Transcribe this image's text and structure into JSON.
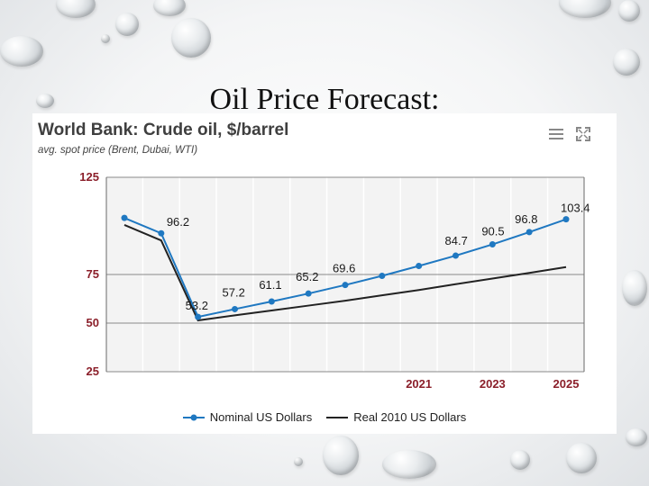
{
  "slide": {
    "title": "Oil Price Forecast:"
  },
  "chart_data": {
    "type": "line",
    "title": "World Bank: Crude oil, $/barrel",
    "subtitle": "avg. spot price (Brent, Dubai, WTI)",
    "x": [
      2013,
      2014,
      2015,
      2016,
      2017,
      2018,
      2019,
      2020,
      2021,
      2022,
      2023,
      2024,
      2025
    ],
    "x_tick_labels": [
      {
        "x": 2021,
        "label": "2021"
      },
      {
        "x": 2023,
        "label": "2023"
      },
      {
        "x": 2025,
        "label": "2025"
      }
    ],
    "y_ticks": [
      25,
      50,
      75,
      125
    ],
    "ylim": [
      25,
      125
    ],
    "grid": true,
    "series": [
      {
        "name": "Nominal US Dollars",
        "color": "#1f78c1",
        "marker": "circle",
        "values": [
          104.1,
          96.2,
          53.2,
          57.2,
          61.1,
          65.2,
          69.6,
          74.3,
          79.4,
          84.7,
          90.5,
          96.8,
          103.4
        ],
        "data_labels": [
          null,
          "96.2",
          "53.2",
          "57.2",
          "61.1",
          "65.2",
          "69.6",
          null,
          null,
          "84.7",
          "90.5",
          "96.8",
          "103.4"
        ]
      },
      {
        "name": "Real 2010 US Dollars",
        "color": "#222222",
        "marker": "none",
        "values": [
          100.5,
          92.5,
          51.4,
          54.0,
          56.5,
          59.0,
          61.5,
          64.3,
          67.0,
          70.0,
          72.9,
          75.8,
          78.8
        ],
        "data_labels": []
      }
    ],
    "legend_position": "bottom-center"
  },
  "icons": {
    "menu": "menu-icon",
    "fullscreen": "fullscreen-icon"
  }
}
